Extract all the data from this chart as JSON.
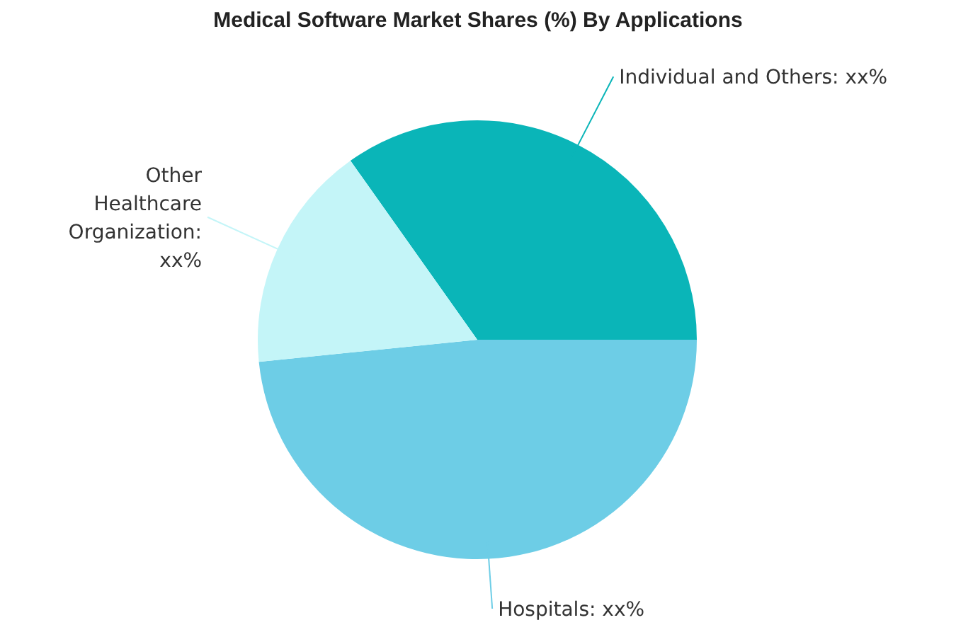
{
  "chart_data": {
    "type": "pie",
    "title": "Medical Software Market Shares (%) By Applications",
    "categories": [
      "Individual and Others: xx%",
      "Hospitals: xx%",
      "Other Healthcare Organization: xx%"
    ],
    "values": [
      34.8,
      48.4,
      16.8
    ],
    "colors": [
      "#0ab5b8",
      "#6dcde6",
      "#c4f5f8"
    ]
  }
}
